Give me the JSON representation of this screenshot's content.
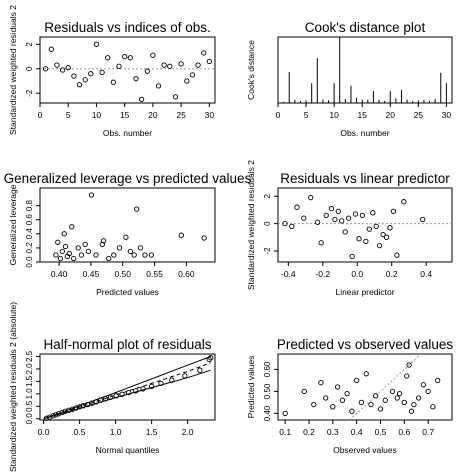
{
  "chart_data": [
    {
      "type": "scatter",
      "title": "Residuals vs indices of obs.",
      "xlabel": "Obs. number",
      "ylabel": "Standardized weighted residuals 2",
      "xlim": [
        0,
        31
      ],
      "ylim": [
        -2.8,
        2.6
      ],
      "xticks": [
        0,
        5,
        10,
        15,
        20,
        25,
        30
      ],
      "yticks": [
        -2,
        0,
        2
      ],
      "ref_line_y": 0,
      "points": [
        [
          1,
          0.0
        ],
        [
          2,
          1.6
        ],
        [
          3,
          0.3
        ],
        [
          4,
          -0.1
        ],
        [
          5,
          0.1
        ],
        [
          6,
          -0.6
        ],
        [
          7,
          -1.3
        ],
        [
          8,
          -0.9
        ],
        [
          9,
          -0.4
        ],
        [
          10,
          2.0
        ],
        [
          11,
          -0.3
        ],
        [
          12,
          0.9
        ],
        [
          13,
          -1.1
        ],
        [
          14,
          0.2
        ],
        [
          15,
          1.0
        ],
        [
          16,
          0.9
        ],
        [
          17,
          -0.8
        ],
        [
          18,
          -2.5
        ],
        [
          19,
          -0.2
        ],
        [
          20,
          1.1
        ],
        [
          21,
          -1.4
        ],
        [
          22,
          0.3
        ],
        [
          23,
          0.2
        ],
        [
          24,
          -2.3
        ],
        [
          25,
          0.4
        ],
        [
          26,
          -1.0
        ],
        [
          27,
          -0.5
        ],
        [
          28,
          0.3
        ],
        [
          29,
          1.3
        ],
        [
          30,
          0.6
        ]
      ]
    },
    {
      "type": "bar",
      "title": "Cook's distance plot",
      "xlabel": "Obs. number",
      "ylabel": "Cook's distance",
      "xlim": [
        0,
        31
      ],
      "ylim": [
        0,
        1
      ],
      "xticks": [
        0,
        5,
        10,
        15,
        20,
        25,
        30
      ],
      "x": [
        1,
        2,
        3,
        4,
        5,
        6,
        7,
        8,
        9,
        10,
        11,
        12,
        13,
        14,
        15,
        16,
        17,
        18,
        19,
        20,
        21,
        22,
        23,
        24,
        25,
        26,
        27,
        28,
        29,
        30
      ],
      "values": [
        0.02,
        0.47,
        0.05,
        0.03,
        0.04,
        0.3,
        0.68,
        0.05,
        0.04,
        0.3,
        1.0,
        0.06,
        0.26,
        0.08,
        0.05,
        0.05,
        0.18,
        0.05,
        0.03,
        0.18,
        0.07,
        0.2,
        0.05,
        0.03,
        0.04,
        0.05,
        0.03,
        0.06,
        0.46,
        0.3
      ]
    },
    {
      "type": "scatter",
      "title": "Generalized leverage vs predicted values",
      "xlabel": "Predicted values",
      "ylabel": "Generalized leverage",
      "xlim": [
        0.37,
        0.645
      ],
      "ylim": [
        0.0,
        1.05
      ],
      "xticks": [
        0.4,
        0.45,
        0.5,
        0.55,
        0.6
      ],
      "xtick_labels": [
        "0.40",
        "0.45",
        "0.50",
        "0.55",
        "0.60"
      ],
      "yticks": [
        0.0,
        0.2,
        0.4,
        0.6,
        0.8
      ],
      "ytick_labels": [
        "0.0",
        "0.2",
        "0.4",
        "0.6",
        "0.8"
      ],
      "points": [
        [
          0.395,
          0.1
        ],
        [
          0.398,
          0.28
        ],
        [
          0.402,
          0.05
        ],
        [
          0.405,
          0.15
        ],
        [
          0.408,
          0.4
        ],
        [
          0.41,
          0.22
        ],
        [
          0.413,
          0.08
        ],
        [
          0.416,
          0.12
        ],
        [
          0.42,
          0.5
        ],
        [
          0.423,
          0.05
        ],
        [
          0.43,
          0.2
        ],
        [
          0.435,
          0.1
        ],
        [
          0.441,
          0.25
        ],
        [
          0.446,
          0.15
        ],
        [
          0.451,
          0.95
        ],
        [
          0.458,
          0.1
        ],
        [
          0.468,
          0.25
        ],
        [
          0.478,
          0.05
        ],
        [
          0.486,
          0.1
        ],
        [
          0.495,
          0.2
        ],
        [
          0.505,
          0.35
        ],
        [
          0.512,
          0.15
        ],
        [
          0.518,
          0.1
        ],
        [
          0.522,
          0.75
        ],
        [
          0.528,
          0.2
        ],
        [
          0.535,
          0.1
        ],
        [
          0.545,
          0.1
        ],
        [
          0.592,
          0.38
        ],
        [
          0.628,
          0.34
        ],
        [
          0.47,
          0.3
        ]
      ]
    },
    {
      "type": "scatter",
      "title": "Residuals vs linear predictor",
      "xlabel": "Linear predictor",
      "ylabel": "Standardized weighted residuals 2",
      "xlim": [
        -0.46,
        0.55
      ],
      "ylim": [
        -2.8,
        2.6
      ],
      "xticks": [
        -0.4,
        -0.2,
        0.0,
        0.2,
        0.4
      ],
      "xtick_labels": [
        "-0.4",
        "-0.2",
        "0.0",
        "0.2",
        "0.4"
      ],
      "yticks": [
        -2,
        0,
        2
      ],
      "ref_line_y": 0,
      "points": [
        [
          -0.42,
          0.0
        ],
        [
          -0.38,
          -0.2
        ],
        [
          -0.35,
          1.2
        ],
        [
          -0.31,
          0.4
        ],
        [
          -0.27,
          1.9
        ],
        [
          -0.23,
          0.1
        ],
        [
          -0.21,
          -1.4
        ],
        [
          -0.18,
          0.6
        ],
        [
          -0.15,
          1.1
        ],
        [
          -0.13,
          0.3
        ],
        [
          -0.11,
          0.9
        ],
        [
          -0.09,
          0.2
        ],
        [
          -0.07,
          -0.6
        ],
        [
          -0.05,
          0.4
        ],
        [
          -0.03,
          -2.4
        ],
        [
          -0.01,
          0.7
        ],
        [
          0.01,
          -1.1
        ],
        [
          0.03,
          0.6
        ],
        [
          0.05,
          -1.3
        ],
        [
          0.07,
          -0.4
        ],
        [
          0.09,
          0.8
        ],
        [
          0.11,
          -0.2
        ],
        [
          0.13,
          -1.6
        ],
        [
          0.15,
          -0.8
        ],
        [
          0.17,
          -1.0
        ],
        [
          0.19,
          -0.3
        ],
        [
          0.21,
          0.9
        ],
        [
          0.23,
          -2.3
        ],
        [
          0.27,
          1.6
        ],
        [
          0.38,
          0.3
        ]
      ]
    },
    {
      "type": "line",
      "title": "Half-normal plot of residuals",
      "xlabel": "Normal quantiles",
      "ylabel": "Standardized weighted residuals 2 (absolute)",
      "xlim": [
        -0.05,
        2.38
      ],
      "ylim": [
        -0.05,
        2.6
      ],
      "xticks": [
        0.0,
        0.5,
        1.0,
        1.5,
        2.0
      ],
      "xtick_labels": [
        "0.0",
        "0.5",
        "1.0",
        "1.5",
        "2.0"
      ],
      "yticks": [
        0.0,
        0.5,
        1.0,
        1.5,
        2.0,
        2.5
      ],
      "ytick_labels": [
        "0.0",
        "0.5",
        "1.0",
        "1.5",
        "2.0",
        "2.5"
      ],
      "points": [
        [
          0.04,
          0.02
        ],
        [
          0.08,
          0.06
        ],
        [
          0.13,
          0.12
        ],
        [
          0.17,
          0.16
        ],
        [
          0.21,
          0.2
        ],
        [
          0.26,
          0.25
        ],
        [
          0.3,
          0.3
        ],
        [
          0.35,
          0.34
        ],
        [
          0.4,
          0.38
        ],
        [
          0.45,
          0.43
        ],
        [
          0.5,
          0.48
        ],
        [
          0.55,
          0.52
        ],
        [
          0.61,
          0.57
        ],
        [
          0.67,
          0.62
        ],
        [
          0.73,
          0.68
        ],
        [
          0.79,
          0.74
        ],
        [
          0.86,
          0.8
        ],
        [
          0.93,
          0.86
        ],
        [
          1.01,
          0.92
        ],
        [
          1.09,
          0.98
        ],
        [
          1.18,
          1.05
        ],
        [
          1.28,
          1.12
        ],
        [
          1.38,
          1.2
        ],
        [
          1.5,
          1.3
        ],
        [
          1.63,
          1.42
        ],
        [
          1.78,
          1.55
        ],
        [
          1.96,
          1.72
        ],
        [
          2.17,
          1.95
        ],
        [
          2.32,
          2.45
        ],
        [
          2.3,
          2.38
        ]
      ],
      "series": [
        {
          "values": [
            [
              0.0,
              0.0
            ],
            [
              0.5,
              0.52
            ],
            [
              1.0,
              1.05
            ],
            [
              1.5,
              1.6
            ],
            [
              2.0,
              2.15
            ],
            [
              2.32,
              2.5
            ]
          ]
        },
        {
          "values": [
            [
              0.0,
              0.0
            ],
            [
              0.5,
              0.47
            ],
            [
              1.0,
              0.95
            ],
            [
              1.5,
              1.42
            ],
            [
              2.0,
              1.9
            ],
            [
              2.32,
              2.25
            ]
          ]
        },
        {
          "values": [
            [
              0.0,
              0.0
            ],
            [
              0.5,
              0.42
            ],
            [
              1.0,
              0.85
            ],
            [
              1.5,
              1.25
            ],
            [
              2.0,
              1.65
            ],
            [
              2.32,
              1.95
            ]
          ]
        }
      ]
    },
    {
      "type": "scatter",
      "title": "Predicted vs observed values",
      "xlabel": "Observed values",
      "ylabel": "Predicted values",
      "xlim": [
        0.07,
        0.8
      ],
      "ylim": [
        0.37,
        0.67
      ],
      "xticks": [
        0.1,
        0.2,
        0.3,
        0.4,
        0.5,
        0.6,
        0.7
      ],
      "xtick_labels": [
        "0.1",
        "0.2",
        "0.3",
        "0.4",
        "0.5",
        "0.6",
        "0.7"
      ],
      "yticks": [
        0.4,
        0.5,
        0.6
      ],
      "ytick_labels": [
        "0.40",
        "0.50",
        "0.60"
      ],
      "ref_line": [
        [
          0.37,
          0.37
        ],
        [
          0.67,
          0.67
        ]
      ],
      "points": [
        [
          0.1,
          0.4
        ],
        [
          0.18,
          0.5
        ],
        [
          0.22,
          0.44
        ],
        [
          0.25,
          0.54
        ],
        [
          0.27,
          0.47
        ],
        [
          0.3,
          0.43
        ],
        [
          0.32,
          0.52
        ],
        [
          0.34,
          0.46
        ],
        [
          0.36,
          0.49
        ],
        [
          0.38,
          0.41
        ],
        [
          0.4,
          0.55
        ],
        [
          0.42,
          0.45
        ],
        [
          0.44,
          0.58
        ],
        [
          0.46,
          0.44
        ],
        [
          0.48,
          0.48
        ],
        [
          0.5,
          0.42
        ],
        [
          0.52,
          0.46
        ],
        [
          0.55,
          0.5
        ],
        [
          0.57,
          0.47
        ],
        [
          0.58,
          0.49
        ],
        [
          0.6,
          0.45
        ],
        [
          0.61,
          0.57
        ],
        [
          0.62,
          0.62
        ],
        [
          0.64,
          0.44
        ],
        [
          0.66,
          0.47
        ],
        [
          0.68,
          0.53
        ],
        [
          0.7,
          0.5
        ],
        [
          0.72,
          0.43
        ],
        [
          0.74,
          0.55
        ],
        [
          0.63,
          0.41
        ]
      ]
    }
  ]
}
